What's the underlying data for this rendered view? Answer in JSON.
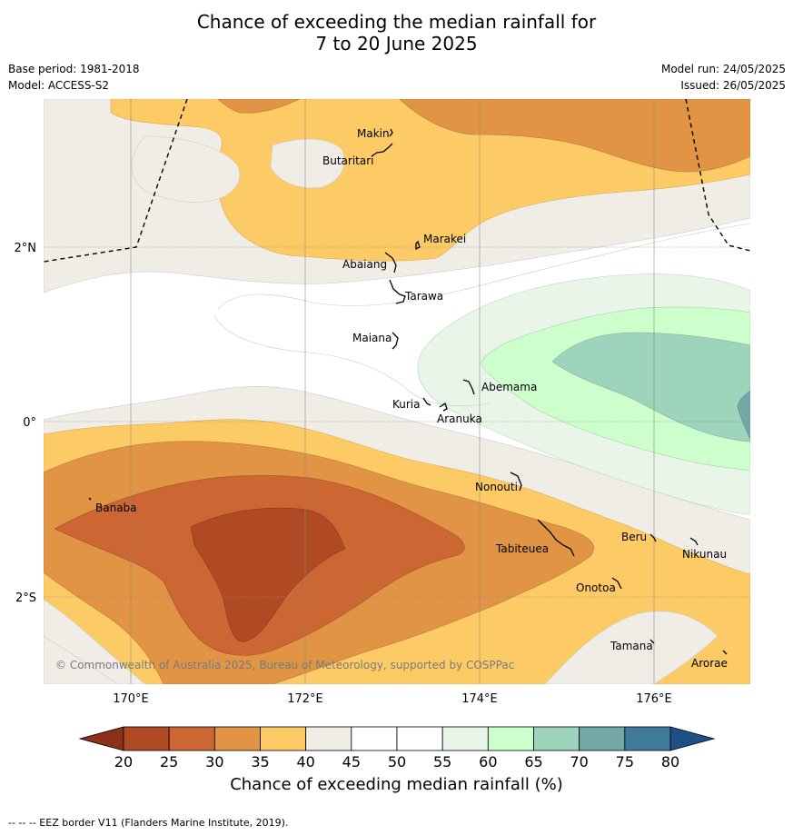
{
  "title_line1": "Chance of exceeding the median rainfall for",
  "title_line2": "7 to 20 June 2025",
  "base_period": "Base period: 1981-2018",
  "model": "Model: ACCESS-S2",
  "model_run": "Model run: 24/05/2025",
  "issued": "Issued: 26/05/2025",
  "lat_labels": [
    "2°N",
    "0°",
    "2°S"
  ],
  "lon_labels": [
    "170°E",
    "172°E",
    "174°E",
    "176°E"
  ],
  "places": [
    {
      "name": "Makin"
    },
    {
      "name": "Butaritari"
    },
    {
      "name": "Marakei"
    },
    {
      "name": "Abaiang"
    },
    {
      "name": "Tarawa"
    },
    {
      "name": "Maiana"
    },
    {
      "name": "Abemama"
    },
    {
      "name": "Kuria"
    },
    {
      "name": "Aranuka"
    },
    {
      "name": "Nonouti"
    },
    {
      "name": "Banaba"
    },
    {
      "name": "Tabiteuea"
    },
    {
      "name": "Beru"
    },
    {
      "name": "Nikunau"
    },
    {
      "name": "Onotoa"
    },
    {
      "name": "Tamana"
    },
    {
      "name": "Arorae"
    }
  ],
  "copyright": "© Commonwealth of Australia 2025, Bureau of Meteorology, supported by COSPPac",
  "colorbar": {
    "ticks": [
      "20",
      "25",
      "30",
      "35",
      "40",
      "45",
      "50",
      "55",
      "60",
      "65",
      "70",
      "75",
      "80"
    ],
    "colors": [
      "#b04a24",
      "#cc6633",
      "#e09444",
      "#fdcb66",
      "#f0ece6",
      "#ffffff",
      "#ffffff",
      "#eaf5ea",
      "#ccffcc",
      "#9fd4bc",
      "#72a8a8",
      "#3f7a98"
    ],
    "under_color": "#8b3219",
    "over_color": "#1e4f86",
    "title": "Chance of exceeding median rainfall (%)"
  },
  "footer": "--  --  -- EEZ border V11 (Flanders Marine Institute, 2019)."
}
